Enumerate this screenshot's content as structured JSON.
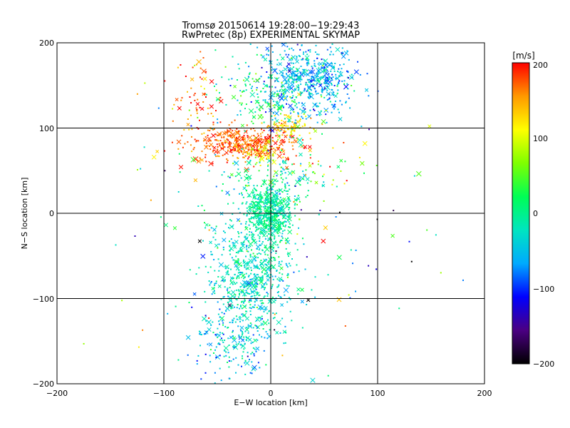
{
  "chart_data": [
    {
      "type": "scatter",
      "title": "Tromsø 20150614 19:28:00−19:29:43",
      "subtitle": "RwPretec (8p) EXPERIMENTAL SKYMAP",
      "xlabel": "E−W location [km]",
      "ylabel": "N−S location [km]",
      "xlim": [
        -200,
        200
      ],
      "ylim": [
        -200,
        200
      ],
      "xticks": [
        "−200",
        "−100",
        "0",
        "100",
        "200"
      ],
      "yticks": [
        "−200",
        "−100",
        "0",
        "100",
        "200"
      ],
      "grid": true,
      "marker_types": [
        "dot",
        "cross"
      ],
      "colorbar": {
        "label": "[m/s]",
        "range": [
          -200,
          200
        ],
        "ticks": [
          "−200",
          "−100",
          "0",
          "100",
          "200"
        ],
        "colormap": [
          "#000000",
          "#4b0082",
          "#0000ff",
          "#00aaff",
          "#00e5c0",
          "#00ff55",
          "#7fff00",
          "#ffff00",
          "#ff9900",
          "#ff0000"
        ]
      },
      "clusters": [
        {
          "cx": 35,
          "cy": 158,
          "sx": 22,
          "sy": 22,
          "v": -60,
          "vs": 30,
          "n": 520
        },
        {
          "cx": -25,
          "cy": 82,
          "sx": 26,
          "sy": 10,
          "v": 175,
          "vs": 22,
          "n": 420
        },
        {
          "cx": 18,
          "cy": 100,
          "sx": 10,
          "sy": 6,
          "v": 130,
          "vs": 20,
          "n": 80
        },
        {
          "cx": -5,
          "cy": 70,
          "sx": 8,
          "sy": 6,
          "v": 90,
          "vs": 20,
          "n": 30
        },
        {
          "cx": -2,
          "cy": 0,
          "sx": 10,
          "sy": 16,
          "v": -5,
          "vs": 18,
          "n": 520
        },
        {
          "cx": -18,
          "cy": -75,
          "sx": 20,
          "sy": 35,
          "v": -25,
          "vs": 25,
          "n": 620
        },
        {
          "cx": -35,
          "cy": -150,
          "sx": 18,
          "sy": 25,
          "v": -50,
          "vs": 35,
          "n": 180
        },
        {
          "cx": 0,
          "cy": 135,
          "sx": 25,
          "sy": 20,
          "v": 10,
          "vs": 45,
          "n": 180
        },
        {
          "cx": 0,
          "cy": 35,
          "sx": 25,
          "sy": 20,
          "v": -10,
          "vs": 40,
          "n": 150
        },
        {
          "cx": -70,
          "cy": 140,
          "sx": 12,
          "sy": 20,
          "v": 170,
          "vs": 35,
          "n": 60
        },
        {
          "cx": 50,
          "cy": 50,
          "sx": 20,
          "sy": 10,
          "v": 120,
          "vs": 60,
          "n": 25
        },
        {
          "cx": 0,
          "cy": 0,
          "sx": 80,
          "sy": 90,
          "v": 0,
          "vs": 110,
          "n": 130
        }
      ]
    }
  ]
}
